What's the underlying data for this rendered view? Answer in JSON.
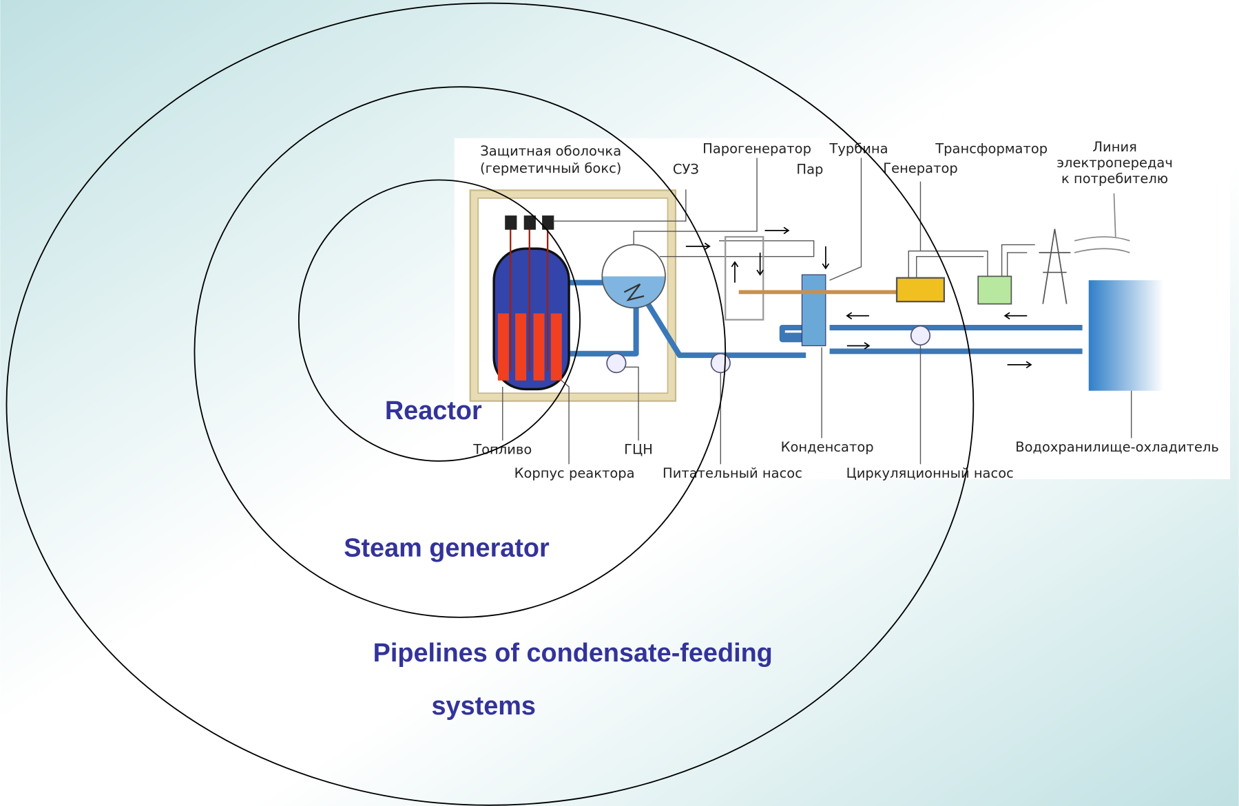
{
  "rings": [
    {
      "lines": [
        "Reactor"
      ]
    },
    {
      "lines": [
        "Steam generator"
      ]
    },
    {
      "lines": [
        "Pipelines of condensate-feeding",
        "systems"
      ]
    }
  ],
  "diagram": {
    "labels": [
      {
        "lines": [
          "Защитная оболочка",
          "(герметичный бокс)"
        ]
      },
      {
        "lines": [
          "СУЗ"
        ]
      },
      {
        "lines": [
          "Парогенератор"
        ]
      },
      {
        "lines": [
          "Турбина"
        ]
      },
      {
        "lines": [
          "Пар"
        ]
      },
      {
        "lines": [
          "Трансформатор"
        ]
      },
      {
        "lines": [
          "Генератор"
        ]
      },
      {
        "lines": [
          "Линия",
          "электропередач",
          "к потребителю"
        ]
      },
      {
        "lines": [
          "Топливо"
        ]
      },
      {
        "lines": [
          "ГЦН"
        ]
      },
      {
        "lines": [
          "Корпус реактора"
        ]
      },
      {
        "lines": [
          "Питательный насос"
        ]
      },
      {
        "lines": [
          "Конденсатор"
        ]
      },
      {
        "lines": [
          "Циркуляционный насос"
        ]
      },
      {
        "lines": [
          "Водохранилище-охладитель"
        ]
      }
    ]
  }
}
